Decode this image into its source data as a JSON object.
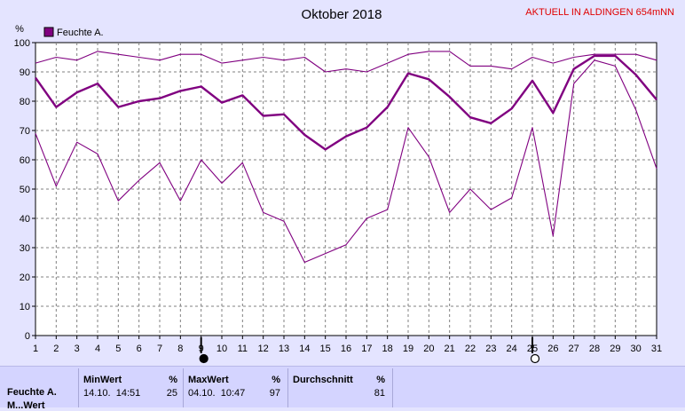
{
  "header": {
    "title": "Oktober 2018",
    "station": "AKTUELL IN ALDINGEN 654mNN"
  },
  "legend": {
    "label": "Feuchte A."
  },
  "chart_data": {
    "type": "line",
    "title": "Oktober 2018",
    "ylabel": "%",
    "xlim": [
      1,
      31
    ],
    "ylim": [
      0,
      100
    ],
    "x": [
      1,
      2,
      3,
      4,
      5,
      6,
      7,
      8,
      9,
      10,
      11,
      12,
      13,
      14,
      15,
      16,
      17,
      18,
      19,
      20,
      21,
      22,
      23,
      24,
      25,
      26,
      27,
      28,
      29,
      30,
      31
    ],
    "x_ticks": [
      "1",
      "2",
      "3",
      "4",
      "5",
      "6",
      "7",
      "8",
      "9",
      "10",
      "11",
      "12",
      "13",
      "14",
      "15",
      "16",
      "17",
      "18",
      "19",
      "20",
      "21",
      "22",
      "23",
      "24",
      "25",
      "26",
      "27",
      "28",
      "29",
      "30",
      "31"
    ],
    "y_ticks": [
      "0",
      "10",
      "20",
      "30",
      "40",
      "50",
      "60",
      "70",
      "80",
      "90",
      "100"
    ],
    "grid": true,
    "legend_position": "top-left",
    "moon_phases": [
      {
        "day": 9,
        "phase": "new-moon"
      },
      {
        "day": 25,
        "phase": "full-moon"
      }
    ],
    "series": [
      {
        "name": "Feuchte A.",
        "color": "#800080",
        "role": "mean",
        "values": [
          88,
          78,
          83,
          86,
          78,
          80,
          81,
          83.5,
          85,
          79.5,
          82,
          75,
          75.5,
          68.5,
          63.5,
          68,
          71,
          78,
          89.5,
          87.5,
          81.5,
          74.5,
          72.5,
          77.5,
          87,
          76,
          91,
          95.5,
          95.5,
          89,
          80.5
        ]
      },
      {
        "color": "#800080",
        "role": "max",
        "values": [
          93,
          95,
          94,
          97,
          96,
          95,
          94,
          96,
          96,
          93,
          94,
          95,
          94,
          95,
          90,
          91,
          90,
          93,
          96,
          97,
          97,
          92,
          92,
          91,
          95,
          93,
          95,
          96,
          96,
          96,
          94
        ]
      },
      {
        "color": "#800080",
        "role": "min",
        "values": [
          69,
          51,
          66,
          62,
          46,
          53,
          59,
          46,
          60,
          52,
          59,
          42,
          39,
          25,
          28,
          31,
          40,
          43,
          71,
          61,
          42,
          50,
          43,
          47,
          71,
          34,
          86,
          94,
          92,
          77,
          57
        ]
      }
    ]
  },
  "stats": {
    "sensor": "Feuchte A.",
    "sensor2": "M...Wert",
    "min": {
      "label": "MinWert",
      "unit": "%",
      "date": "14.10.",
      "time": "14:51",
      "value": "25"
    },
    "max": {
      "label": "MaxWert",
      "unit": "%",
      "date": "04.10.",
      "time": "10:47",
      "value": "97"
    },
    "avg": {
      "label": "Durchschnitt",
      "unit": "%",
      "value": "81"
    }
  }
}
